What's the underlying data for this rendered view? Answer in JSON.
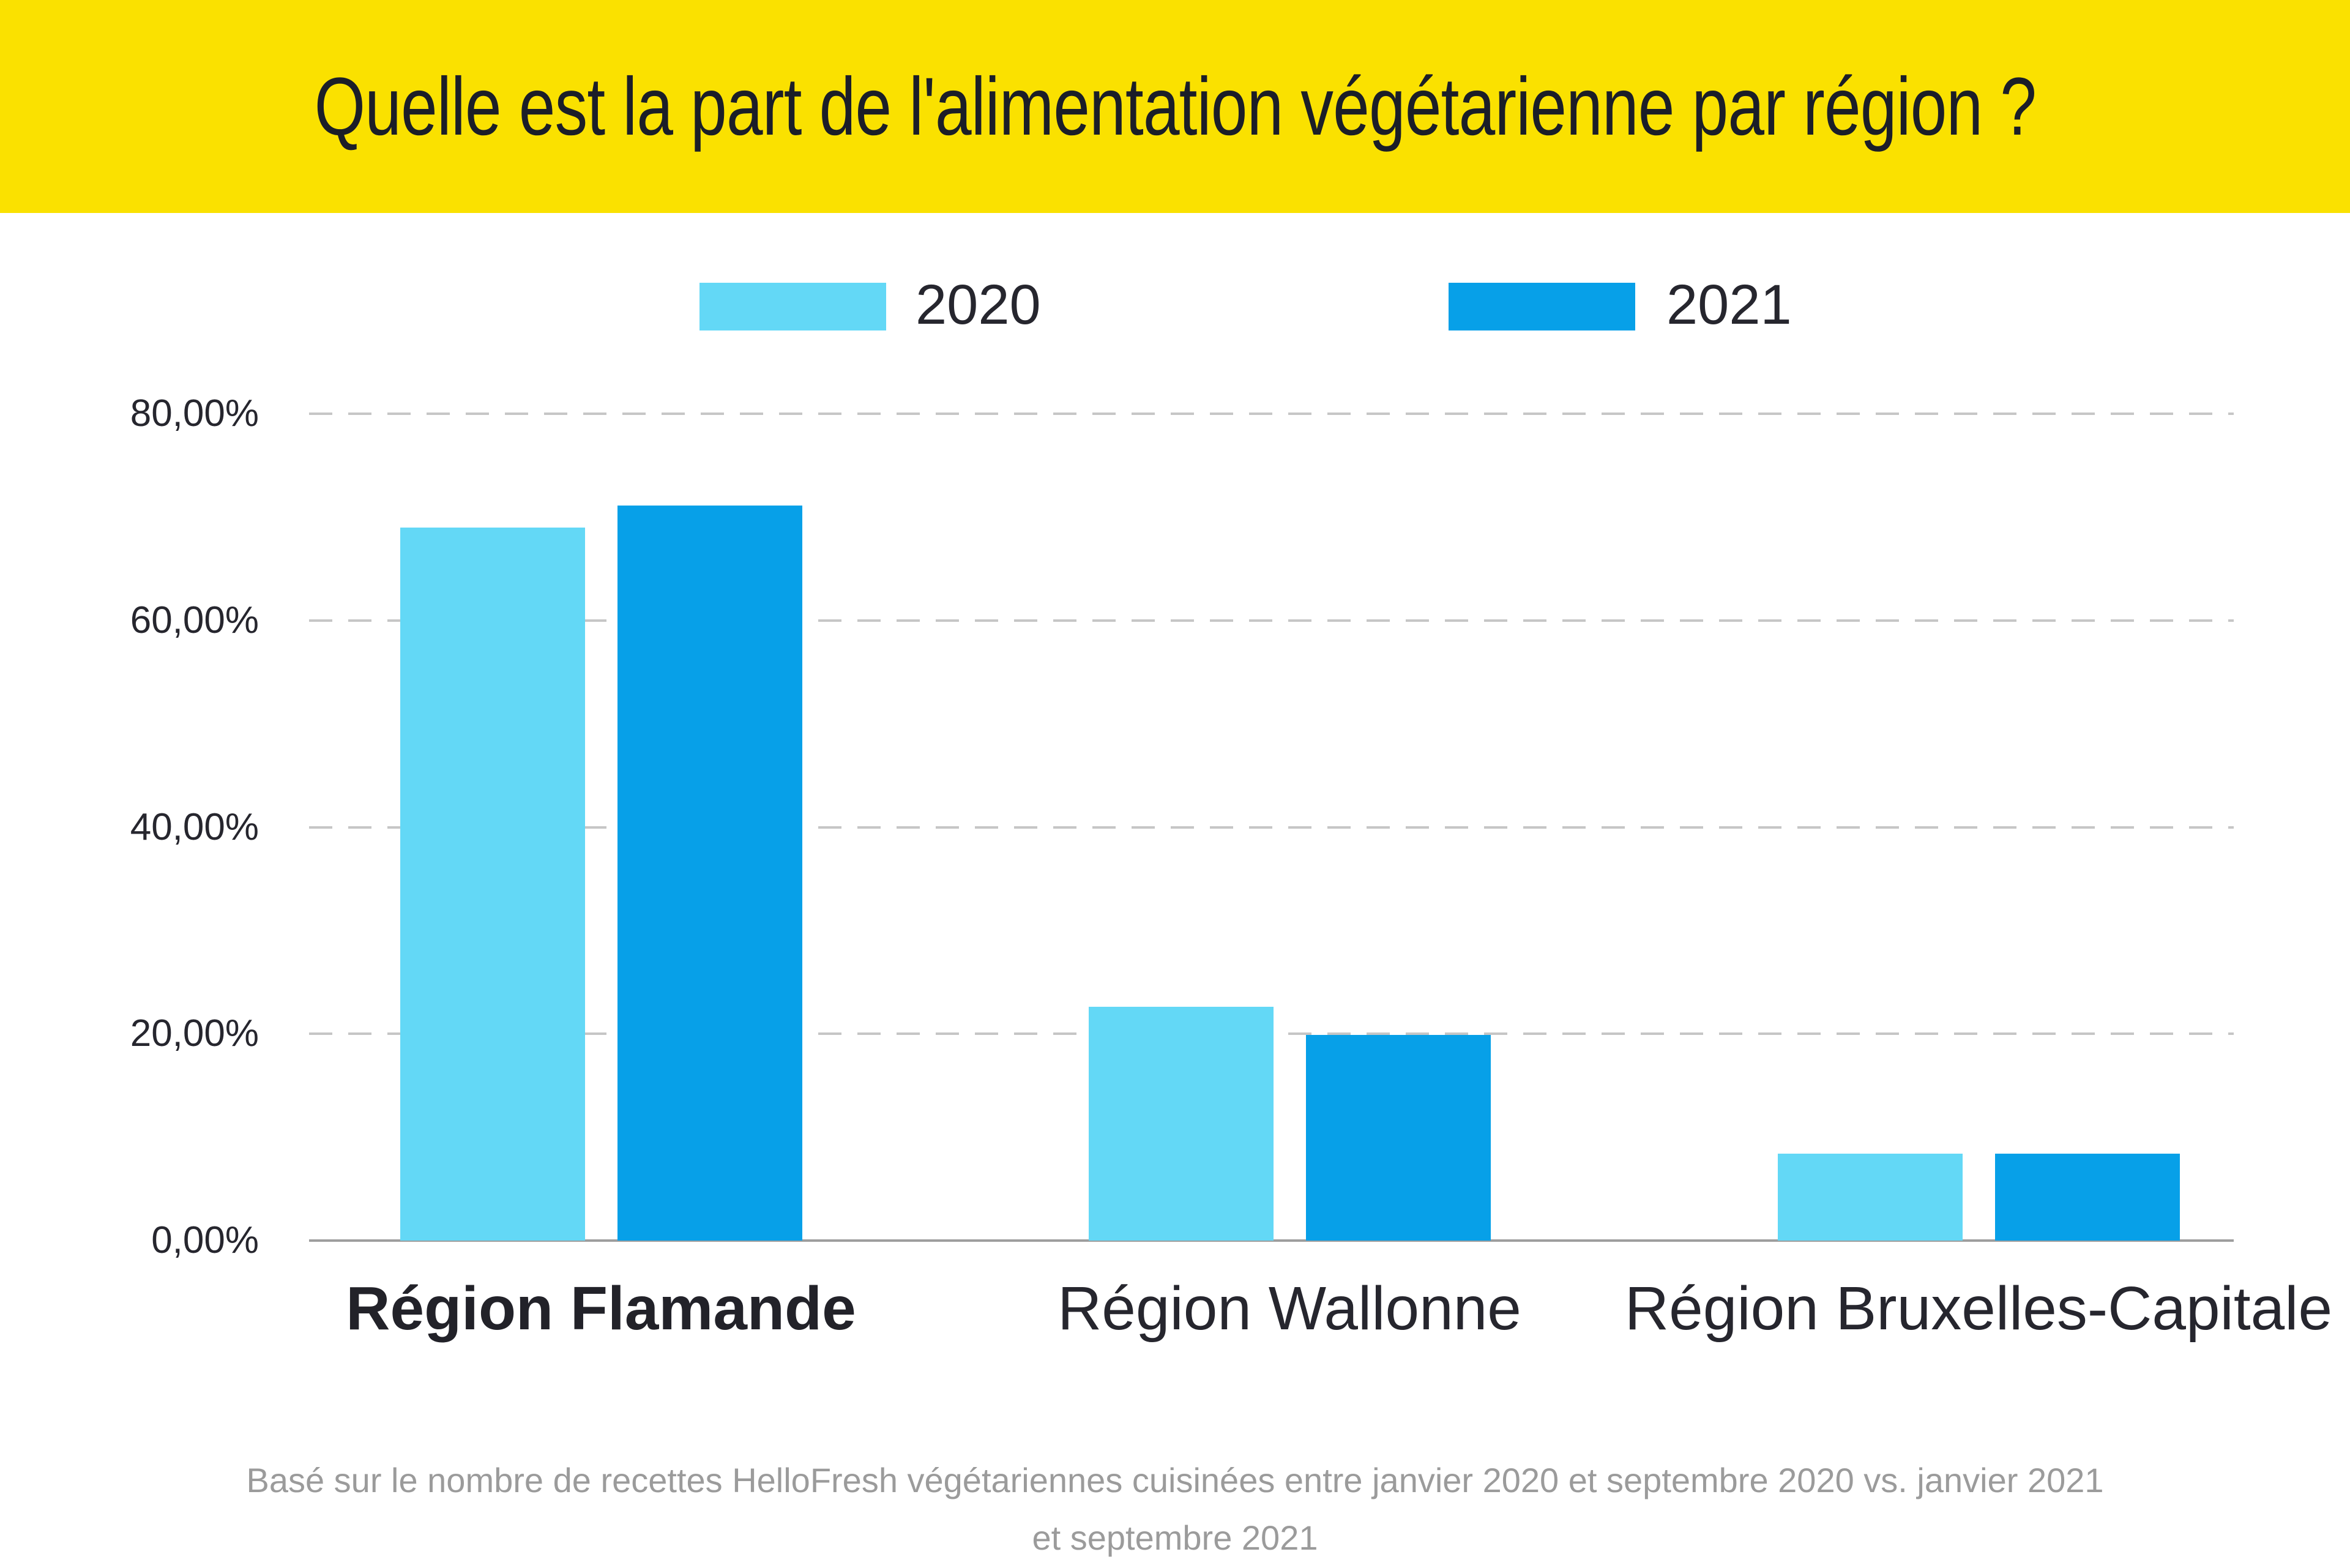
{
  "banner": {
    "title": "Quelle est la part de l'alimentation végétarienne par région ?"
  },
  "legend": {
    "items": [
      {
        "label": "2020",
        "color": "#63D8F6"
      },
      {
        "label": "2021",
        "color": "#07A0E8"
      }
    ],
    "position": "top-center"
  },
  "chart_data": {
    "type": "bar",
    "title": "Quelle est la part de l'alimentation végétarienne par région ?",
    "categories": [
      "Région Flamande",
      "Région Wallonne",
      "Région Bruxelles-Capitale"
    ],
    "category_emphasis_bold": [
      true,
      false,
      false
    ],
    "series": [
      {
        "name": "2020",
        "color": "#63D8F6",
        "values": [
          69.0,
          22.6,
          8.4
        ]
      },
      {
        "name": "2021",
        "color": "#07A0E8",
        "values": [
          71.1,
          19.9,
          8.4
        ]
      }
    ],
    "y_ticks": [
      {
        "value": 80,
        "label": "80,00%"
      },
      {
        "value": 60,
        "label": "60,00%"
      },
      {
        "value": 40,
        "label": "40,00%"
      },
      {
        "value": 20,
        "label": "20,00%"
      },
      {
        "value": 0,
        "label": "0,00%"
      }
    ],
    "ylim": [
      0,
      80
    ],
    "grid": "horizontal-dashed",
    "legend_position": "top"
  },
  "footnote": {
    "line1": "Basé sur le nombre de recettes HelloFresh végétariennes cuisinées entre janvier 2020 et septembre 2020 vs. janvier 2021",
    "line2": "et septembre 2021"
  },
  "colors": {
    "banner_background": "#FAE100",
    "title_text": "#1B1E28",
    "bar_2020": "#63D8F6",
    "bar_2021": "#07A0E8",
    "grid_line": "#C6C6C6",
    "axis_line": "#9E9E9E",
    "label_text": "#26262E",
    "footnote_text": "#9B9B9B"
  }
}
